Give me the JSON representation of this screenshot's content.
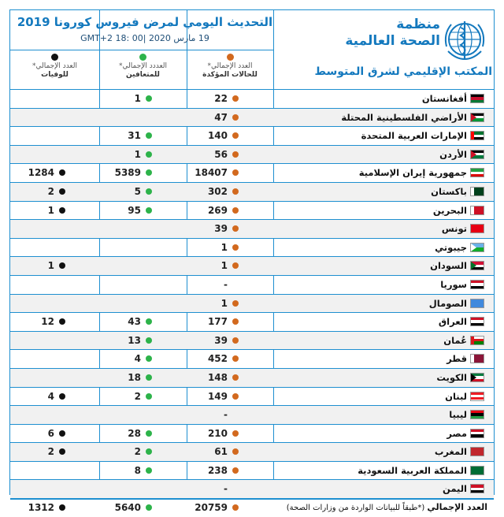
{
  "header": {
    "title": "التحديث اليومي لمرض فيروس كورونا 2019",
    "date": "19 مارس 2020 |GMT+2  18: 00",
    "who_name_line1": "منظمة",
    "who_name_line2": "الصحة العالمية",
    "who_regional": "المكتب الإقليمي لشرق المتوسط"
  },
  "columns": {
    "cases": {
      "line1": "العدد الإجمالي*",
      "line2": "للحالات المؤكدة",
      "color": "#d2691e"
    },
    "recovered": {
      "line1": "العددد الإجمالي*",
      "line2": "للمتعافين",
      "color": "#2db34a"
    },
    "deaths": {
      "line1": "العدد الإجمالي*",
      "line2": "للوفيات",
      "color": "#111111"
    }
  },
  "rows": [
    {
      "country": "أفغانستان",
      "cases": "22",
      "recovered": "1",
      "deaths": "",
      "flag": [
        "#000000",
        "#c8102e",
        "#007a36"
      ],
      "flag_dir": "v"
    },
    {
      "country": "الأراضي الفلسطينية المحتلة",
      "cases": "47",
      "recovered": "",
      "deaths": "",
      "flag": [
        "#000000",
        "#ffffff",
        "#009736"
      ],
      "flag_dir": "h",
      "flag_tri": "#ce1126"
    },
    {
      "country": "الإمارات العربية المتحدة",
      "cases": "140",
      "recovered": "31",
      "deaths": "",
      "flag": [
        "#00732f",
        "#ffffff",
        "#000000"
      ],
      "flag_dir": "h",
      "flag_bar": "#ff0000"
    },
    {
      "country": "الأردن",
      "cases": "56",
      "recovered": "1",
      "deaths": "",
      "flag": [
        "#000000",
        "#ffffff",
        "#007a3d"
      ],
      "flag_dir": "h",
      "flag_tri": "#ce1126"
    },
    {
      "country": "جمهورية إيران الإسلامية",
      "cases": "18407",
      "recovered": "5389",
      "deaths": "1284",
      "flag": [
        "#239f40",
        "#ffffff",
        "#da0000"
      ],
      "flag_dir": "h"
    },
    {
      "country": "باكستان",
      "cases": "302",
      "recovered": "5",
      "deaths": "2",
      "flag": [
        "#01411c",
        "#01411c"
      ],
      "flag_dir": "h",
      "flag_bar": "#ffffff"
    },
    {
      "country": "البحرين",
      "cases": "269",
      "recovered": "95",
      "deaths": "1",
      "flag": [
        "#ce1126",
        "#ce1126"
      ],
      "flag_dir": "h",
      "flag_bar": "#ffffff"
    },
    {
      "country": "تونس",
      "cases": "39",
      "recovered": "",
      "deaths": "",
      "flag": [
        "#e70013",
        "#e70013"
      ],
      "flag_dir": "h"
    },
    {
      "country": "جيبوتي",
      "cases": "1",
      "recovered": "",
      "deaths": "",
      "flag": [
        "#6ab2e7",
        "#12ad2b"
      ],
      "flag_dir": "h",
      "flag_tri": "#ffffff"
    },
    {
      "country": "السودان",
      "cases": "1",
      "recovered": "",
      "deaths": "1",
      "flag": [
        "#d21034",
        "#ffffff",
        "#000000"
      ],
      "flag_dir": "h",
      "flag_tri": "#007229"
    },
    {
      "country": "سوريا",
      "cases": "-",
      "recovered": "",
      "deaths": "",
      "flag": [
        "#ce1126",
        "#ffffff",
        "#000000"
      ],
      "flag_dir": "h"
    },
    {
      "country": "الصومال",
      "cases": "1",
      "recovered": "",
      "deaths": "",
      "flag": [
        "#4189dd",
        "#4189dd"
      ],
      "flag_dir": "h"
    },
    {
      "country": "العراق",
      "cases": "177",
      "recovered": "43",
      "deaths": "12",
      "flag": [
        "#ce1126",
        "#ffffff",
        "#000000"
      ],
      "flag_dir": "h"
    },
    {
      "country": "عُمان",
      "cases": "39",
      "recovered": "13",
      "deaths": "",
      "flag": [
        "#ffffff",
        "#db161b",
        "#008000"
      ],
      "flag_dir": "h",
      "flag_bar": "#db161b"
    },
    {
      "country": "قطر",
      "cases": "452",
      "recovered": "4",
      "deaths": "",
      "flag": [
        "#8a1538",
        "#8a1538"
      ],
      "flag_dir": "h",
      "flag_bar": "#ffffff"
    },
    {
      "country": "الكويت",
      "cases": "148",
      "recovered": "18",
      "deaths": "",
      "flag": [
        "#007a3d",
        "#ffffff",
        "#ce1126"
      ],
      "flag_dir": "h",
      "flag_tri": "#000000"
    },
    {
      "country": "لبنان",
      "cases": "149",
      "recovered": "2",
      "deaths": "4",
      "flag": [
        "#ed1c24",
        "#ffffff",
        "#ed1c24"
      ],
      "flag_dir": "h"
    },
    {
      "country": "ليبيا",
      "cases": "-",
      "recovered": "",
      "deaths": "",
      "flag": [
        "#e70013",
        "#000000",
        "#239e46"
      ],
      "flag_dir": "h"
    },
    {
      "country": "مصر",
      "cases": "210",
      "recovered": "28",
      "deaths": "6",
      "flag": [
        "#ce1126",
        "#ffffff",
        "#000000"
      ],
      "flag_dir": "h"
    },
    {
      "country": "المغرب",
      "cases": "61",
      "recovered": "2",
      "deaths": "2",
      "flag": [
        "#c1272d",
        "#c1272d"
      ],
      "flag_dir": "h"
    },
    {
      "country": "المملكة العربية السعودية",
      "cases": "238",
      "recovered": "8",
      "deaths": "",
      "flag": [
        "#006c35",
        "#006c35"
      ],
      "flag_dir": "h"
    },
    {
      "country": "اليمن",
      "cases": "-",
      "recovered": "",
      "deaths": "",
      "flag": [
        "#ce1126",
        "#ffffff",
        "#000000"
      ],
      "flag_dir": "h"
    }
  ],
  "total": {
    "label_bold": "العدد الإجمالي",
    "label_note": " (*طبقاً للبيانات الواردة من وزارات الصحة)",
    "cases": "20759",
    "recovered": "5640",
    "deaths": "1312"
  }
}
